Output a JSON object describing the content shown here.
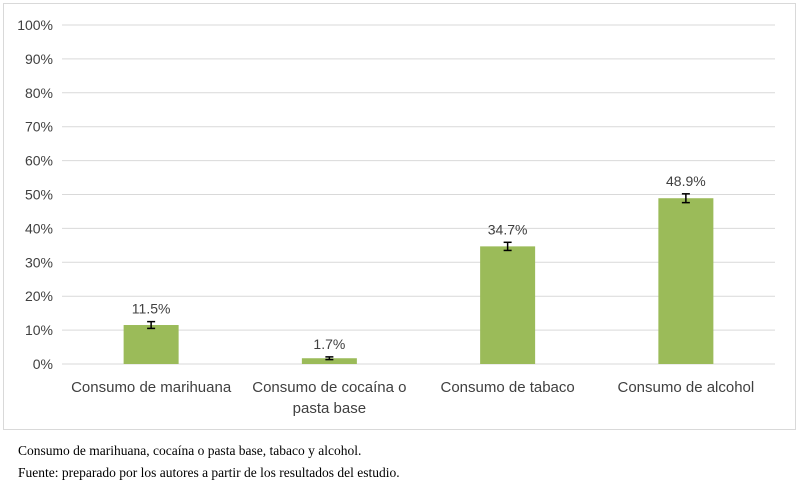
{
  "chart_data": {
    "type": "bar",
    "categories": [
      [
        "Consumo de marihuana"
      ],
      [
        "Consumo de cocaína o",
        "pasta base"
      ],
      [
        "Consumo de tabaco"
      ],
      [
        "Consumo de alcohol"
      ]
    ],
    "values": [
      11.5,
      1.7,
      34.7,
      48.9
    ],
    "error": [
      1.0,
      0.4,
      1.2,
      1.3
    ],
    "data_labels": [
      "11.5%",
      "1.7%",
      "34.7%",
      "48.9%"
    ],
    "yticks": [
      "0%",
      "10%",
      "20%",
      "30%",
      "40%",
      "50%",
      "60%",
      "70%",
      "80%",
      "90%",
      "100%"
    ],
    "ylim": [
      0,
      100
    ],
    "grid": true,
    "bar_color": "#9bbb59",
    "grid_color": "#d9d9d9",
    "title": "",
    "xlabel": "",
    "ylabel": ""
  },
  "caption": {
    "line1": "Consumo de marihuana, cocaína o pasta base, tabaco y alcohol.",
    "line2": "Fuente: preparado por los autores a partir de los resultados del estudio."
  }
}
